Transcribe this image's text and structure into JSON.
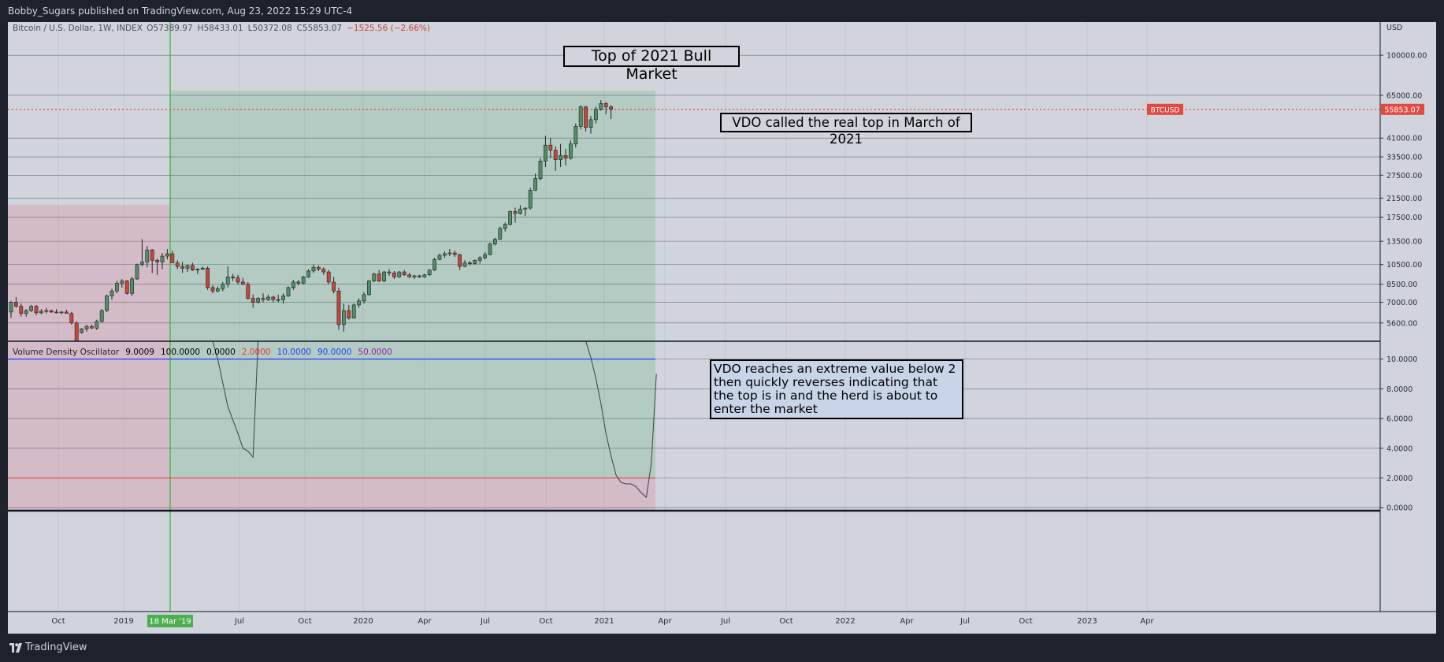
{
  "header": {
    "attribution": "Bobby_Sugars published on TradingView.com, Aug 23, 2022 15:29 UTC-4"
  },
  "footer": {
    "brand": "TradingView"
  },
  "legend": {
    "symbol": "Bitcoin / U.S. Dollar, 1W, INDEX",
    "open": "O57389.97",
    "high": "H58433.01",
    "low": "L50372.08",
    "close": "C55853.07",
    "change": "−1525.56 (−2.66%)"
  },
  "indicator": {
    "name": "Volume Density Oscillator",
    "params": [
      "9.0009",
      "100.0000",
      "0.0000",
      "2.0000",
      "10.0000",
      "90.0000",
      "50.0000"
    ],
    "param_colors": [
      "#000000",
      "#000000",
      "#000000",
      "#e53935",
      "#1e40ff",
      "#1e40ff",
      "#8e24aa"
    ]
  },
  "annotations": {
    "title": "Top of 2021 Bull Market",
    "note1": "VDO called the real top in March of 2021",
    "note2": "VDO reaches an extreme value below 2 then quickly reverses indicating that the top is in and the herd is about to enter the market"
  },
  "price_axis": {
    "currency": "USD",
    "ticks": [
      "100000.00",
      "65000.00",
      "41000.00",
      "33500.00",
      "27500.00",
      "21500.00",
      "17500.00",
      "13500.00",
      "10500.00",
      "8500.00",
      "7000.00",
      "5600.00"
    ],
    "last_label": "BTCUSD",
    "last_value": "55853.07"
  },
  "osc_axis": {
    "ticks": [
      "10.0000",
      "8.0000",
      "6.0000",
      "4.0000",
      "2.0000",
      "0.0000"
    ]
  },
  "time_axis": {
    "labels": [
      "Oct",
      "2019",
      "Jul",
      "Oct",
      "2020",
      "Apr",
      "Jul",
      "Oct",
      "2021",
      "Apr",
      "Jul",
      "Oct",
      "2022",
      "Apr",
      "Jul",
      "Oct",
      "2023",
      "Apr"
    ],
    "marker": "18 Mar '19"
  },
  "colors": {
    "up": "#26a69a",
    "down": "#ef5350",
    "up_candle": "#4f8f6a",
    "down_candle": "#c8453b",
    "green_zone": "rgba(60,170,90,0.20)",
    "red_zone": "rgba(230,80,110,0.18)",
    "last_price": "#e04a3f",
    "vline": "#2eb82e"
  },
  "chart_data": [
    {
      "type": "candlestick",
      "title": "Bitcoin / U.S. Dollar, 1W, INDEX",
      "scale": "log",
      "ylim": [
        5000,
        140000
      ],
      "last_price": 55853.07,
      "candles": [
        {
          "o": 6300,
          "h": 7100,
          "l": 5900,
          "c": 7000
        },
        {
          "o": 7000,
          "h": 7400,
          "l": 6600,
          "c": 6700
        },
        {
          "o": 6700,
          "h": 6900,
          "l": 6000,
          "c": 6200
        },
        {
          "o": 6200,
          "h": 6500,
          "l": 6000,
          "c": 6400
        },
        {
          "o": 6400,
          "h": 6800,
          "l": 6300,
          "c": 6700
        },
        {
          "o": 6700,
          "h": 6800,
          "l": 6100,
          "c": 6250
        },
        {
          "o": 6250,
          "h": 6500,
          "l": 6150,
          "c": 6350
        },
        {
          "o": 6350,
          "h": 6600,
          "l": 6200,
          "c": 6400
        },
        {
          "o": 6400,
          "h": 6450,
          "l": 6250,
          "c": 6300
        },
        {
          "o": 6300,
          "h": 6500,
          "l": 6200,
          "c": 6250
        },
        {
          "o": 6250,
          "h": 6350,
          "l": 6150,
          "c": 6300
        },
        {
          "o": 6300,
          "h": 6450,
          "l": 6200,
          "c": 6200
        },
        {
          "o": 6200,
          "h": 6300,
          "l": 5500,
          "c": 5600
        },
        {
          "o": 5600,
          "h": 5700,
          "l": 4500,
          "c": 4600
        },
        {
          "o": 5050,
          "h": 5300,
          "l": 5000,
          "c": 5250
        },
        {
          "o": 5250,
          "h": 5500,
          "l": 5100,
          "c": 5400
        },
        {
          "o": 5400,
          "h": 5500,
          "l": 5250,
          "c": 5300
        },
        {
          "o": 5300,
          "h": 5800,
          "l": 5200,
          "c": 5700
        },
        {
          "o": 5700,
          "h": 6500,
          "l": 5600,
          "c": 6400
        },
        {
          "o": 6400,
          "h": 7600,
          "l": 6300,
          "c": 7500
        },
        {
          "o": 7500,
          "h": 8100,
          "l": 7200,
          "c": 7900
        },
        {
          "o": 7900,
          "h": 8800,
          "l": 7700,
          "c": 8600
        },
        {
          "o": 8600,
          "h": 9000,
          "l": 8200,
          "c": 8800
        },
        {
          "o": 8800,
          "h": 8900,
          "l": 7600,
          "c": 7700
        },
        {
          "o": 7700,
          "h": 9200,
          "l": 7500,
          "c": 9000
        },
        {
          "o": 9000,
          "h": 10600,
          "l": 8900,
          "c": 10500
        },
        {
          "o": 10500,
          "h": 13800,
          "l": 10300,
          "c": 10800
        },
        {
          "o": 10800,
          "h": 12800,
          "l": 10200,
          "c": 12300
        },
        {
          "o": 12300,
          "h": 12400,
          "l": 9600,
          "c": 11000
        },
        {
          "o": 11000,
          "h": 11200,
          "l": 9400,
          "c": 10800
        },
        {
          "o": 10800,
          "h": 11900,
          "l": 10000,
          "c": 11500
        },
        {
          "o": 11500,
          "h": 12400,
          "l": 11100,
          "c": 11800
        },
        {
          "o": 11800,
          "h": 12200,
          "l": 10700,
          "c": 10700
        },
        {
          "o": 10700,
          "h": 11000,
          "l": 10000,
          "c": 10300
        },
        {
          "o": 10300,
          "h": 10800,
          "l": 9600,
          "c": 10100
        },
        {
          "o": 10100,
          "h": 10500,
          "l": 9700,
          "c": 10400
        },
        {
          "o": 10400,
          "h": 10700,
          "l": 9800,
          "c": 9900
        },
        {
          "o": 9900,
          "h": 10100,
          "l": 9500,
          "c": 10000
        },
        {
          "o": 10000,
          "h": 10300,
          "l": 9900,
          "c": 10100
        },
        {
          "o": 10100,
          "h": 10300,
          "l": 8000,
          "c": 8200
        },
        {
          "o": 8200,
          "h": 8400,
          "l": 7700,
          "c": 7900
        },
        {
          "o": 7900,
          "h": 8300,
          "l": 7800,
          "c": 8100
        },
        {
          "o": 8100,
          "h": 8700,
          "l": 7900,
          "c": 8500
        },
        {
          "o": 8500,
          "h": 10300,
          "l": 8200,
          "c": 9200
        },
        {
          "o": 9200,
          "h": 9500,
          "l": 8800,
          "c": 9100
        },
        {
          "o": 9100,
          "h": 9400,
          "l": 8500,
          "c": 8700
        },
        {
          "o": 8700,
          "h": 9100,
          "l": 8400,
          "c": 8500
        },
        {
          "o": 8500,
          "h": 8700,
          "l": 7200,
          "c": 7300
        },
        {
          "o": 7300,
          "h": 7600,
          "l": 6600,
          "c": 7000
        },
        {
          "o": 7000,
          "h": 7400,
          "l": 6900,
          "c": 7300
        },
        {
          "o": 7300,
          "h": 7700,
          "l": 7000,
          "c": 7200
        },
        {
          "o": 7200,
          "h": 7600,
          "l": 7100,
          "c": 7400
        },
        {
          "o": 7400,
          "h": 7500,
          "l": 7000,
          "c": 7200
        },
        {
          "o": 7200,
          "h": 7600,
          "l": 7000,
          "c": 7200
        },
        {
          "o": 7200,
          "h": 7700,
          "l": 6900,
          "c": 7500
        },
        {
          "o": 7500,
          "h": 8300,
          "l": 7400,
          "c": 8200
        },
        {
          "o": 8200,
          "h": 8900,
          "l": 8000,
          "c": 8700
        },
        {
          "o": 8700,
          "h": 8900,
          "l": 8400,
          "c": 8600
        },
        {
          "o": 8600,
          "h": 9300,
          "l": 8500,
          "c": 9200
        },
        {
          "o": 9200,
          "h": 10000,
          "l": 9100,
          "c": 9800
        },
        {
          "o": 9800,
          "h": 10500,
          "l": 9600,
          "c": 10200
        },
        {
          "o": 10200,
          "h": 10400,
          "l": 9800,
          "c": 10000
        },
        {
          "o": 10000,
          "h": 10200,
          "l": 9400,
          "c": 9700
        },
        {
          "o": 9700,
          "h": 9900,
          "l": 8500,
          "c": 8700
        },
        {
          "o": 8700,
          "h": 9200,
          "l": 7700,
          "c": 7900
        },
        {
          "o": 7900,
          "h": 8200,
          "l": 5200,
          "c": 5500
        },
        {
          "o": 5500,
          "h": 6900,
          "l": 5100,
          "c": 6400
        },
        {
          "o": 6400,
          "h": 6800,
          "l": 5800,
          "c": 5900
        },
        {
          "o": 5900,
          "h": 6900,
          "l": 5900,
          "c": 6800
        },
        {
          "o": 6800,
          "h": 7300,
          "l": 6600,
          "c": 7100
        },
        {
          "o": 7100,
          "h": 7800,
          "l": 6900,
          "c": 7600
        },
        {
          "o": 7600,
          "h": 8900,
          "l": 7500,
          "c": 8800
        },
        {
          "o": 8800,
          "h": 9600,
          "l": 8700,
          "c": 9500
        },
        {
          "o": 9500,
          "h": 9900,
          "l": 8700,
          "c": 8800
        },
        {
          "o": 8800,
          "h": 9800,
          "l": 8700,
          "c": 9700
        },
        {
          "o": 9700,
          "h": 10000,
          "l": 9300,
          "c": 9600
        },
        {
          "o": 9600,
          "h": 9800,
          "l": 9000,
          "c": 9200
        },
        {
          "o": 9200,
          "h": 9800,
          "l": 9100,
          "c": 9700
        },
        {
          "o": 9700,
          "h": 9900,
          "l": 9300,
          "c": 9400
        },
        {
          "o": 9400,
          "h": 9600,
          "l": 9100,
          "c": 9200
        },
        {
          "o": 9200,
          "h": 9400,
          "l": 9000,
          "c": 9300
        },
        {
          "o": 9300,
          "h": 9400,
          "l": 9100,
          "c": 9200
        },
        {
          "o": 9200,
          "h": 9500,
          "l": 9100,
          "c": 9400
        },
        {
          "o": 9400,
          "h": 10000,
          "l": 9300,
          "c": 9900
        },
        {
          "o": 9900,
          "h": 11300,
          "l": 9800,
          "c": 11100
        },
        {
          "o": 11100,
          "h": 11800,
          "l": 11000,
          "c": 11600
        },
        {
          "o": 11600,
          "h": 12100,
          "l": 11300,
          "c": 11800
        },
        {
          "o": 11800,
          "h": 12400,
          "l": 11500,
          "c": 11900
        },
        {
          "o": 11900,
          "h": 12200,
          "l": 11400,
          "c": 11700
        },
        {
          "o": 11700,
          "h": 11800,
          "l": 9900,
          "c": 10300
        },
        {
          "o": 10300,
          "h": 11000,
          "l": 10200,
          "c": 10700
        },
        {
          "o": 10700,
          "h": 10900,
          "l": 10400,
          "c": 10600
        },
        {
          "o": 10600,
          "h": 11100,
          "l": 10500,
          "c": 11000
        },
        {
          "o": 11000,
          "h": 11500,
          "l": 10600,
          "c": 11300
        },
        {
          "o": 11300,
          "h": 12000,
          "l": 11100,
          "c": 11700
        },
        {
          "o": 11700,
          "h": 13300,
          "l": 11600,
          "c": 13100
        },
        {
          "o": 13100,
          "h": 14000,
          "l": 12900,
          "c": 13800
        },
        {
          "o": 13800,
          "h": 15800,
          "l": 13700,
          "c": 15500
        },
        {
          "o": 15500,
          "h": 16500,
          "l": 15000,
          "c": 16200
        },
        {
          "o": 16200,
          "h": 18800,
          "l": 16000,
          "c": 18600
        },
        {
          "o": 18600,
          "h": 19400,
          "l": 16500,
          "c": 18200
        },
        {
          "o": 18200,
          "h": 19900,
          "l": 18000,
          "c": 19100
        },
        {
          "o": 19100,
          "h": 19400,
          "l": 17700,
          "c": 19300
        },
        {
          "o": 19300,
          "h": 24000,
          "l": 19000,
          "c": 23400
        },
        {
          "o": 23400,
          "h": 28000,
          "l": 23200,
          "c": 26500
        },
        {
          "o": 26500,
          "h": 33000,
          "l": 26000,
          "c": 32000
        },
        {
          "o": 32000,
          "h": 42000,
          "l": 30000,
          "c": 38000
        },
        {
          "o": 38000,
          "h": 41000,
          "l": 33000,
          "c": 36000
        },
        {
          "o": 36000,
          "h": 37500,
          "l": 28800,
          "c": 32500
        },
        {
          "o": 32500,
          "h": 38500,
          "l": 30000,
          "c": 34000
        },
        {
          "o": 34000,
          "h": 36500,
          "l": 30500,
          "c": 33000
        },
        {
          "o": 33000,
          "h": 40000,
          "l": 32500,
          "c": 38500
        },
        {
          "o": 38500,
          "h": 48000,
          "l": 37000,
          "c": 46500
        },
        {
          "o": 46500,
          "h": 58300,
          "l": 45000,
          "c": 57400
        },
        {
          "o": 57400,
          "h": 58000,
          "l": 44000,
          "c": 46000
        },
        {
          "o": 46000,
          "h": 52000,
          "l": 43000,
          "c": 50000
        },
        {
          "o": 50000,
          "h": 57500,
          "l": 48000,
          "c": 56000
        },
        {
          "o": 56000,
          "h": 61700,
          "l": 55000,
          "c": 59500
        },
        {
          "o": 59500,
          "h": 60500,
          "l": 53000,
          "c": 57400
        },
        {
          "o": 57389.97,
          "h": 58433.01,
          "l": 50372.08,
          "c": 55853.07
        }
      ]
    },
    {
      "type": "line",
      "title": "Volume Density Oscillator",
      "ylim": [
        -0.2,
        11.2
      ],
      "levels": {
        "upper": 10,
        "lower": 2,
        "mid": 0
      },
      "series": [
        {
          "segment": 1,
          "x": [
            40,
            41,
            42,
            43,
            44,
            45,
            46,
            47,
            48,
            49
          ],
          "y": [
            11.2,
            10.0,
            8.4,
            6.8,
            5.9,
            5.0,
            4.0,
            3.8,
            3.4,
            11.2
          ]
        },
        {
          "segment": 2,
          "x": [
            114,
            115,
            116,
            117,
            118,
            119,
            120,
            121,
            122,
            123,
            124,
            125,
            126,
            127,
            128
          ],
          "y": [
            11.2,
            10.1,
            8.7,
            7.0,
            5.0,
            3.5,
            2.2,
            1.7,
            1.6,
            1.6,
            1.4,
            1.0,
            0.7,
            3.0,
            9.0
          ]
        }
      ]
    }
  ]
}
